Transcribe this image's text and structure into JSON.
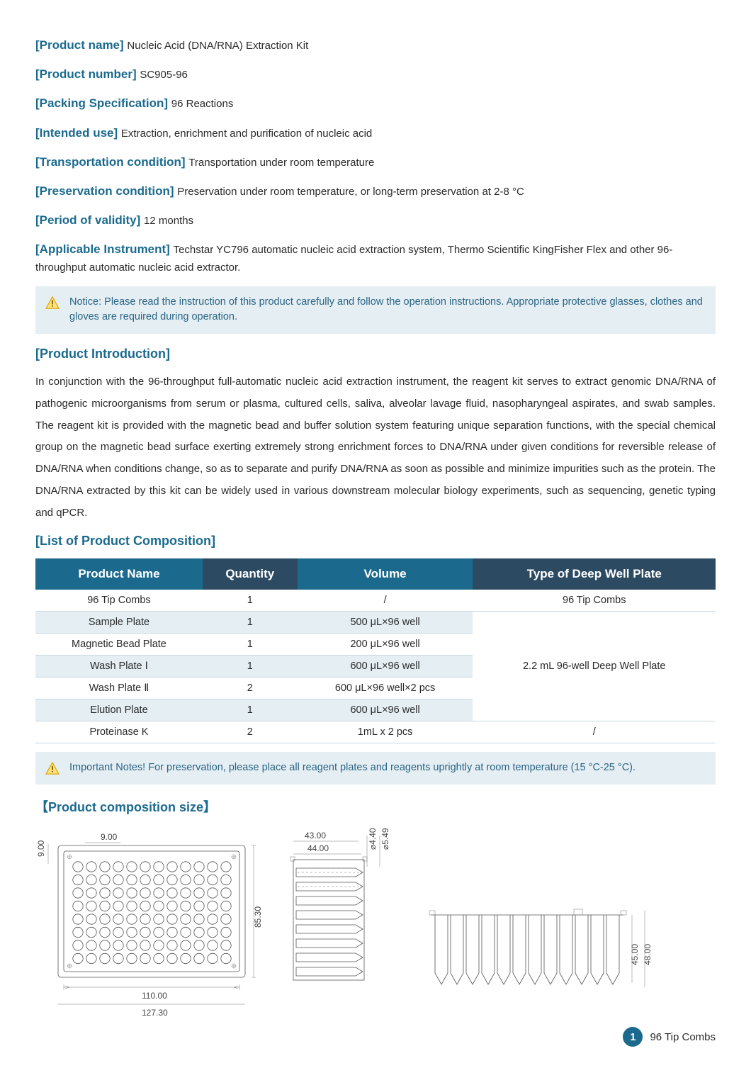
{
  "fields": [
    {
      "label": "[Product name]",
      "value": "Nucleic Acid (DNA/RNA) Extraction Kit"
    },
    {
      "label": "[Product number]",
      "value": "SC905-96"
    },
    {
      "label": "[Packing Specification]",
      "value": "96 Reactions"
    },
    {
      "label": "[Intended use]",
      "value": "Extraction, enrichment and purification of nucleic acid"
    },
    {
      "label": "[Transportation condition]",
      "value": "Transportation under room temperature"
    },
    {
      "label": "[Preservation condition]",
      "value": "Preservation under room temperature, or long-term preservation at 2-8 °C"
    },
    {
      "label": "[Period of validity]",
      "value": "12 months"
    },
    {
      "label": "[Applicable Instrument]",
      "value": "Techstar YC796 automatic nucleic acid extraction system, Thermo Scientific KingFisher Flex and other 96-throughput automatic nucleic acid extractor."
    }
  ],
  "notice1": "Notice: Please read the instruction of this product carefully and follow the operation instructions. Appropriate protective glasses, clothes and gloves are required during operation.",
  "headings": {
    "intro": "[Product Introduction]",
    "composition": "[List of Product Composition]",
    "size": "【Product composition size】"
  },
  "intro_text": "In conjunction with the 96-throughput full-automatic nucleic acid extraction instrument, the reagent kit serves to extract genomic DNA/RNA of pathogenic microorganisms from serum or plasma, cultured cells, saliva, alveolar lavage fluid, nasopharyngeal aspirates, and swab samples. The reagent kit is provided with the magnetic bead and buffer solution system featuring unique separation functions, with the special chemical group on the magnetic bead surface exerting extremely strong enrichment forces to DNA/RNA under given conditions for reversible release of DNA/RNA when conditions change, so as to separate and purify DNA/RNA as soon as possible and minimize impurities such as the protein. The DNA/RNA extracted by this kit can be widely used in various downstream molecular biology experiments, such as sequencing, genetic typing and qPCR.",
  "table": {
    "header_colors": [
      "#1b6a8e",
      "#2d4a63",
      "#1b6a8e",
      "#2d4a63"
    ],
    "row_alt_color": "#e4eef3",
    "columns": [
      "Product Name",
      "Quantity",
      "Volume",
      "Type of Deep Well Plate"
    ],
    "rows": [
      {
        "cells": [
          "96 Tip Combs",
          "1",
          "/",
          "96 Tip Combs"
        ],
        "bg": "#ffffff"
      },
      {
        "cells": [
          "Sample Plate",
          "1",
          "500 μL×96 well"
        ],
        "bg": "#e4eef3",
        "merge_start": true,
        "merge_text": "2.2 mL 96-well Deep Well Plate",
        "merge_rows": 5
      },
      {
        "cells": [
          "Magnetic Bead Plate",
          "1",
          "200 μL×96 well"
        ],
        "bg": "#ffffff"
      },
      {
        "cells": [
          "Wash Plate Ⅰ",
          "1",
          "600 μL×96 well"
        ],
        "bg": "#e4eef3"
      },
      {
        "cells": [
          "Wash Plate Ⅱ",
          "2",
          "600 μL×96 well×2 pcs"
        ],
        "bg": "#ffffff"
      },
      {
        "cells": [
          "Elution Plate",
          "1",
          "600 μL×96 well"
        ],
        "bg": "#e4eef3"
      },
      {
        "cells": [
          "Proteinase K",
          "2",
          "1mL x 2 pcs",
          "/"
        ],
        "bg": "#ffffff"
      }
    ]
  },
  "notice2": "Important Notes! For preservation, please place all reagent plates and reagents uprightly at room temperature (15 °C-25 °C).",
  "diagram_dims": {
    "plate_top": {
      "w": "110.00",
      "w_outer": "127.30",
      "h": "85.30",
      "pitch": "9.00",
      "margin": "9.00"
    },
    "plate_side": {
      "w1": "43.00",
      "w2": "44.00",
      "d1": "⌀4.40",
      "d2": "⌀5.49"
    },
    "comb_side": {
      "h1": "45.00",
      "h2": "48.00"
    }
  },
  "page": {
    "num": "1",
    "label": "96 Tip Combs"
  },
  "colors": {
    "brand": "#1b6a8e",
    "notice_bg": "#e4eef3",
    "notice_text": "#2b6584",
    "warn_border": "#d9a400",
    "warn_fill": "#ffe27a"
  }
}
